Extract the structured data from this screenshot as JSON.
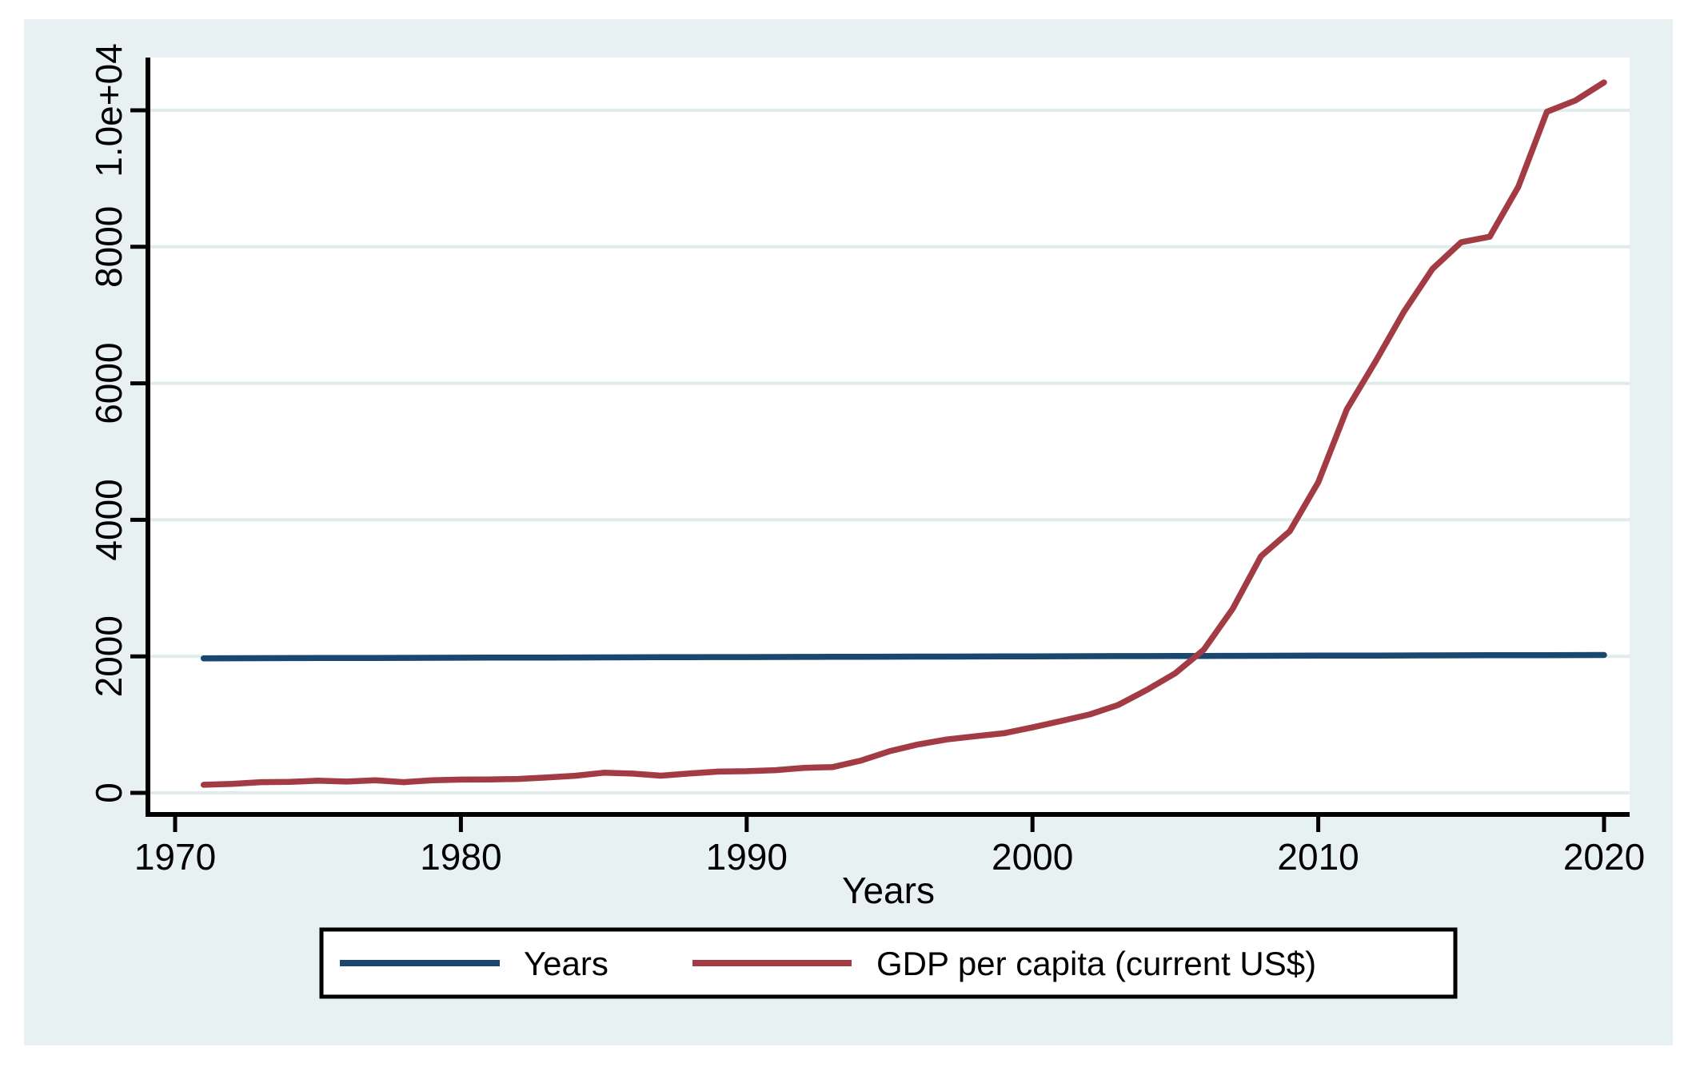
{
  "figure": {
    "background_color": "#e8f1f2",
    "plot_background_color": "#ffffff",
    "grid_color": "#dfeceb",
    "axis_color": "#000000",
    "text_color": "#000000",
    "legend_background": "#ffffff",
    "legend_border_color": "#000000"
  },
  "chart_data": {
    "type": "line",
    "title": "",
    "xlabel": "Years",
    "ylabel": "",
    "grid": true,
    "legend_position": "bottom-outside",
    "xlim": [
      1969.0,
      2020.9
    ],
    "ylim": [
      0,
      10770
    ],
    "x_ticks": [
      {
        "value": 1970,
        "label": "1970"
      },
      {
        "value": 1980,
        "label": "1980"
      },
      {
        "value": 1990,
        "label": "1990"
      },
      {
        "value": 2000,
        "label": "2000"
      },
      {
        "value": 2010,
        "label": "2010"
      },
      {
        "value": 2020,
        "label": "2020"
      }
    ],
    "y_ticks": [
      {
        "value": 0,
        "label": "0"
      },
      {
        "value": 2000,
        "label": "2000"
      },
      {
        "value": 4000,
        "label": "4000"
      },
      {
        "value": 6000,
        "label": "6000"
      },
      {
        "value": 8000,
        "label": "8000"
      },
      {
        "value": 10000,
        "label": "1.0e+04"
      }
    ],
    "x": [
      1971,
      1972,
      1973,
      1974,
      1975,
      1976,
      1977,
      1978,
      1979,
      1980,
      1981,
      1982,
      1983,
      1984,
      1985,
      1986,
      1987,
      1988,
      1989,
      1990,
      1991,
      1992,
      1993,
      1994,
      1995,
      1996,
      1997,
      1998,
      1999,
      2000,
      2001,
      2002,
      2003,
      2004,
      2005,
      2006,
      2007,
      2008,
      2009,
      2010,
      2011,
      2012,
      2013,
      2014,
      2015,
      2016,
      2017,
      2018,
      2019,
      2020
    ],
    "series": [
      {
        "name": "Years",
        "color": "#1a476f",
        "values": [
          1971,
          1972,
          1973,
          1974,
          1975,
          1976,
          1977,
          1978,
          1979,
          1980,
          1981,
          1982,
          1983,
          1984,
          1985,
          1986,
          1987,
          1988,
          1989,
          1990,
          1991,
          1992,
          1993,
          1994,
          1995,
          1996,
          1997,
          1998,
          1999,
          2000,
          2001,
          2002,
          2003,
          2004,
          2005,
          2006,
          2007,
          2008,
          2009,
          2010,
          2011,
          2012,
          2013,
          2014,
          2015,
          2016,
          2017,
          2018,
          2019,
          2020
        ]
      },
      {
        "name": "GDP per capita (current US$)",
        "color": "#a33b44",
        "values": [
          118.7,
          131.9,
          157.1,
          160.1,
          178.3,
          165.4,
          185.4,
          156.4,
          183.9,
          194.8,
          197.1,
          203.3,
          225.1,
          250.7,
          294.5,
          281.9,
          251.8,
          283.5,
          310.9,
          317.9,
          333.1,
          366.5,
          377.4,
          473.5,
          609.7,
          709.4,
          781.7,
          828.6,
          873.3,
          959.4,
          1053.1,
          1148.5,
          1288.6,
          1508.7,
          1753.4,
          2099.2,
          2693.7,
          3468.3,
          3832.2,
          4550.5,
          5618.1,
          6316.9,
          7050.6,
          7678.6,
          8066.9,
          8148.1,
          8879.4,
          9977.3,
          10143.8,
          10408.7
        ]
      }
    ]
  }
}
